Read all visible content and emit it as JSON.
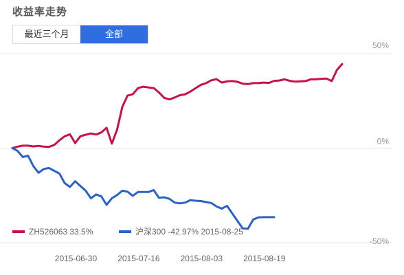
{
  "header": {
    "title": "收益率走势",
    "tabs": [
      {
        "label": "最近三个月",
        "active": false
      },
      {
        "label": "全部",
        "active": true
      }
    ]
  },
  "colors": {
    "portfolio": "#c8104f",
    "index": "#2a62c9",
    "grid": "#e5e5e5",
    "tab_active": "#2f6ee0"
  },
  "chart_data": {
    "type": "line",
    "ylim": [
      -50,
      50
    ],
    "y_ticks": [
      "50%",
      "0%",
      "-50%"
    ],
    "y_tick_values": [
      50,
      0,
      -50
    ],
    "x_tick_labels": [
      "2015-06-30",
      "2015-07-16",
      "2015-08-03",
      "2015-08-19"
    ],
    "x_tick_index": [
      4,
      16,
      28,
      40
    ],
    "grid": true,
    "legend_position": "bottom-left",
    "series": [
      {
        "name": "ZH526063",
        "legend_value": "33.5%",
        "values": [
          0,
          0.8,
          1.3,
          1.3,
          0.9,
          1.2,
          0.8,
          0.7,
          1.7,
          4.2,
          6.3,
          7.3,
          2.7,
          6.3,
          7.1,
          7.8,
          7.2,
          8.3,
          10.8,
          2.4,
          9.8,
          21.8,
          27.8,
          28.5,
          31.8,
          32.5,
          32.1,
          31.8,
          29.5,
          26.6,
          25.8,
          26.8,
          28.0,
          28.5,
          29.9,
          31.7,
          33.5,
          34.4,
          35.9,
          36.5,
          34.7,
          35.3,
          35.5,
          35.1,
          34.1,
          33.9,
          34.4,
          34.4,
          34.7,
          34.5,
          35.6,
          35.8,
          36.4,
          35.6,
          35.2,
          35.3,
          35.5,
          36.4,
          36.4,
          36.7,
          36.8,
          35.5,
          41.4,
          44.5
        ]
      },
      {
        "name": "沪深300",
        "legend_value": "-42.97% 2015-08-25",
        "values": [
          0,
          -1.5,
          -4.7,
          -4.0,
          -9.5,
          -13.0,
          -11.0,
          -10.5,
          -12.0,
          -13.5,
          -18.5,
          -20.5,
          -17.5,
          -20.0,
          -22.5,
          -26.5,
          -24.5,
          -25.5,
          -30.0,
          -26.5,
          -24.8,
          -22.5,
          -23.0,
          -25.2,
          -23.2,
          -23.2,
          -23.2,
          -22.2,
          -26.2,
          -26.0,
          -26.8,
          -28.8,
          -29.2,
          -28.8,
          -27.5,
          -27.8,
          -28.0,
          -28.5,
          -29.0,
          -30.8,
          -32.0,
          -30.5,
          -34.5,
          -38.5,
          -42.4,
          -42.6,
          -37.8,
          -36.6,
          -36.5,
          -36.5,
          -36.5
        ]
      }
    ]
  }
}
